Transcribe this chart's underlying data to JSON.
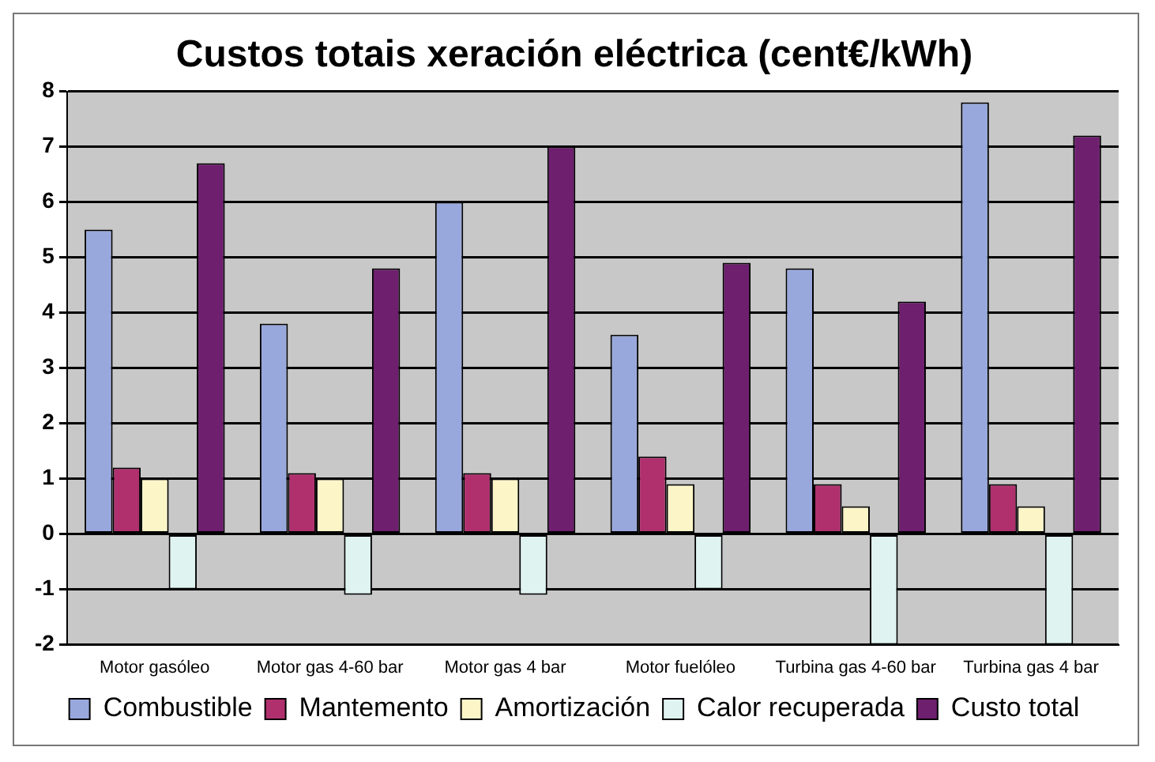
{
  "chart_data": {
    "type": "bar",
    "title": "Custos totais xeración eléctrica (cent€/kWh)",
    "categories": [
      "Motor gasóleo",
      "Motor gas 4-60 bar",
      "Motor gas 4 bar",
      "Motor fuelóleo",
      "Turbina gas 4-60 bar",
      "Turbina gas 4 bar"
    ],
    "series": [
      {
        "name": "Combustible",
        "color": "#99a8dc",
        "values": [
          5.5,
          3.8,
          6.0,
          3.6,
          4.8,
          7.8
        ]
      },
      {
        "name": "Mantemento",
        "color": "#b0306e",
        "values": [
          1.2,
          1.1,
          1.1,
          1.4,
          0.9,
          0.9
        ]
      },
      {
        "name": "Amortización",
        "color": "#fbf5c8",
        "values": [
          1.0,
          1.0,
          1.0,
          0.9,
          0.5,
          0.5
        ]
      },
      {
        "name": "Calor recuperada",
        "color": "#dff3f0",
        "values": [
          -1.0,
          -1.1,
          -1.1,
          -1.0,
          -2.0,
          -2.0
        ]
      },
      {
        "name": "Custo total",
        "color": "#6e1f6e",
        "values": [
          6.7,
          4.8,
          7.0,
          4.9,
          4.2,
          7.2
        ]
      }
    ],
    "ylim": [
      -2,
      8
    ],
    "yticks": [
      -2,
      -1,
      0,
      1,
      2,
      3,
      4,
      5,
      6,
      7,
      8
    ],
    "grid": "y",
    "legend": "bottom"
  }
}
